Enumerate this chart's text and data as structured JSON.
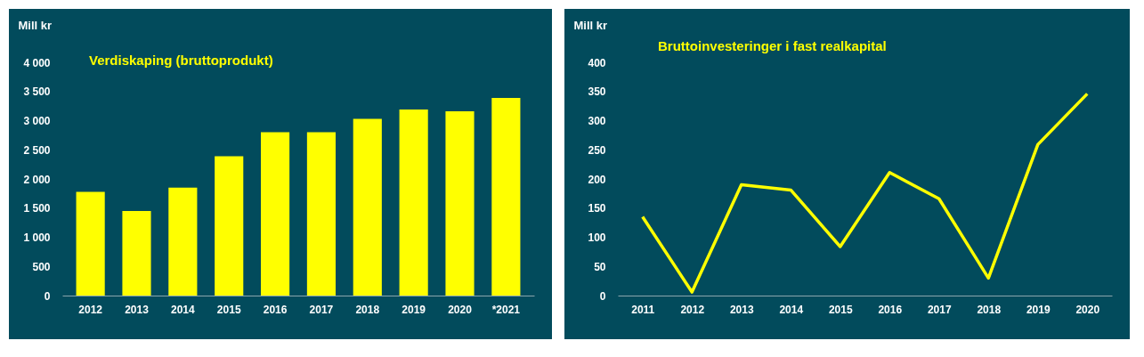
{
  "chart_data": [
    {
      "type": "bar",
      "title": "Verdiskaping (bruttoprodukt)",
      "ylabel": "Mill kr",
      "categories": [
        "2012",
        "2013",
        "2014",
        "2015",
        "2016",
        "2017",
        "2018",
        "2019",
        "2020",
        "*2021"
      ],
      "values": [
        1780,
        1450,
        1850,
        2390,
        2800,
        2800,
        3030,
        3190,
        3160,
        3390
      ],
      "color": "#ffff00",
      "ylim": [
        0,
        4000
      ],
      "yticks": [
        0,
        {
          "value": 500,
          "label": "500"
        },
        {
          "value": 1000,
          "label": "1 000"
        },
        {
          "value": 1500,
          "label": "1 500"
        },
        {
          "value": 2000,
          "label": "2 000"
        },
        {
          "value": 2500,
          "label": "2 500"
        },
        {
          "value": 3000,
          "label": "3 000"
        },
        {
          "value": 3500,
          "label": "3 500"
        },
        {
          "value": 4000,
          "label": "4 000"
        }
      ],
      "grid": false
    },
    {
      "type": "line",
      "title": "Bruttoinvesteringer i fast realkapital",
      "ylabel": "Mill kr",
      "categories": [
        "2011",
        "2012",
        "2013",
        "2014",
        "2015",
        "2016",
        "2017",
        "2018",
        "2019",
        "2020"
      ],
      "values": [
        135,
        6,
        190,
        181,
        84,
        211,
        166,
        30,
        259,
        346
      ],
      "color": "#ffff00",
      "ylim": [
        0,
        400
      ],
      "yticks": [
        0,
        50,
        100,
        150,
        200,
        250,
        300,
        350,
        400
      ],
      "grid": false,
      "marker": "none"
    }
  ]
}
